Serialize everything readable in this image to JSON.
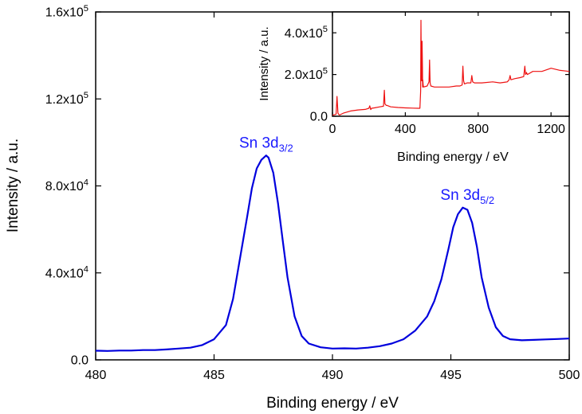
{
  "chart_data": [
    {
      "type": "line",
      "xlabel": "Binding energy / eV",
      "ylabel": "Intensity / a.u.",
      "xlim": [
        480,
        500
      ],
      "ylim": [
        0,
        160000
      ],
      "xticks": [
        480,
        485,
        490,
        495,
        500
      ],
      "xtick_labels": [
        "480",
        "485",
        "490",
        "495",
        "500"
      ],
      "yticks": [
        0,
        40000,
        80000,
        120000,
        160000
      ],
      "ytick_labels": [
        {
          "base": "0.0",
          "exp": ""
        },
        {
          "base": "4.0x10",
          "exp": "4"
        },
        {
          "base": "8.0x10",
          "exp": "4"
        },
        {
          "base": "1.2x10",
          "exp": "5"
        },
        {
          "base": "1.6x10",
          "exp": "5"
        }
      ],
      "series": [
        {
          "color": "#0000dd",
          "x": [
            480.0,
            480.5,
            481.0,
            481.5,
            482.0,
            482.5,
            483.0,
            483.5,
            484.0,
            484.5,
            485.0,
            485.5,
            485.8,
            486.1,
            486.4,
            486.6,
            486.8,
            487.0,
            487.2,
            487.3,
            487.5,
            487.7,
            487.9,
            488.1,
            488.4,
            488.7,
            489.0,
            489.5,
            490.0,
            490.5,
            491.0,
            491.5,
            492.0,
            492.5,
            493.0,
            493.5,
            494.0,
            494.3,
            494.6,
            494.9,
            495.1,
            495.3,
            495.5,
            495.7,
            495.9,
            496.1,
            496.3,
            496.6,
            496.9,
            497.2,
            497.5,
            498.0,
            498.5,
            499.0,
            499.5,
            500.0
          ],
          "y": [
            4200,
            4100,
            4300,
            4300,
            4500,
            4500,
            4800,
            5200,
            5600,
            6800,
            9500,
            16000,
            28000,
            47000,
            66000,
            79000,
            88000,
            92000,
            94000,
            93000,
            86000,
            72000,
            55000,
            38000,
            20000,
            11000,
            7500,
            5800,
            5200,
            5300,
            5200,
            5600,
            6300,
            7500,
            9500,
            13500,
            20000,
            27000,
            37000,
            51000,
            61000,
            67000,
            70000,
            69000,
            63000,
            52000,
            38000,
            24000,
            15000,
            11000,
            9500,
            9000,
            9200,
            9400,
            9600,
            9800
          ]
        }
      ],
      "annotations": [
        {
          "base": "Sn 3d",
          "sub": "3/2",
          "x": 487.2,
          "y": 94000,
          "color": "#1a1aff"
        },
        {
          "base": "Sn 3d",
          "sub": "5/2",
          "x": 495.7,
          "y": 70000,
          "color": "#1a1aff"
        }
      ]
    },
    {
      "type": "line",
      "xlabel": "Binding energy / eV",
      "ylabel": "Intensity / a.u.",
      "xlim": [
        0,
        1300
      ],
      "ylim": [
        0,
        500000
      ],
      "xticks": [
        0,
        400,
        800,
        1200
      ],
      "xtick_labels": [
        "0",
        "400",
        "800",
        "1200"
      ],
      "yticks": [
        0,
        200000,
        400000
      ],
      "ytick_labels": [
        {
          "base": "0.0",
          "exp": ""
        },
        {
          "base": "2.0x10",
          "exp": "5"
        },
        {
          "base": "4.0x10",
          "exp": "5"
        }
      ],
      "series": [
        {
          "color": "#ee1111",
          "x": [
            0,
            20,
            25,
            30,
            35,
            40,
            60,
            100,
            140,
            180,
            200,
            205,
            210,
            215,
            230,
            260,
            280,
            285,
            288,
            292,
            296,
            300,
            320,
            360,
            400,
            440,
            470,
            480,
            484,
            486,
            488,
            490,
            492,
            494,
            495,
            496,
            498,
            500,
            520,
            530,
            533,
            536,
            540,
            560,
            600,
            640,
            680,
            700,
            712,
            716,
            720,
            725,
            740,
            760,
            765,
            770,
            780,
            820,
            880,
            920,
            960,
            970,
            975,
            980,
            1000,
            1030,
            1050,
            1056,
            1060,
            1065,
            1070,
            1100,
            1150,
            1200,
            1250,
            1300
          ],
          "y": [
            5000,
            10000,
            95000,
            15000,
            8000,
            6000,
            15000,
            25000,
            30000,
            33000,
            38000,
            50000,
            32000,
            38000,
            40000,
            45000,
            48000,
            125000,
            60000,
            55000,
            52000,
            52000,
            45000,
            42000,
            40000,
            39000,
            38000,
            38000,
            120000,
            460000,
            200000,
            170000,
            360000,
            230000,
            140000,
            175000,
            150000,
            140000,
            145000,
            165000,
            270000,
            160000,
            145000,
            140000,
            140000,
            140000,
            145000,
            145000,
            150000,
            240000,
            170000,
            155000,
            160000,
            160000,
            195000,
            165000,
            160000,
            160000,
            165000,
            160000,
            165000,
            175000,
            195000,
            175000,
            180000,
            185000,
            190000,
            240000,
            200000,
            210000,
            200000,
            215000,
            215000,
            230000,
            220000,
            215000
          ]
        }
      ]
    }
  ]
}
